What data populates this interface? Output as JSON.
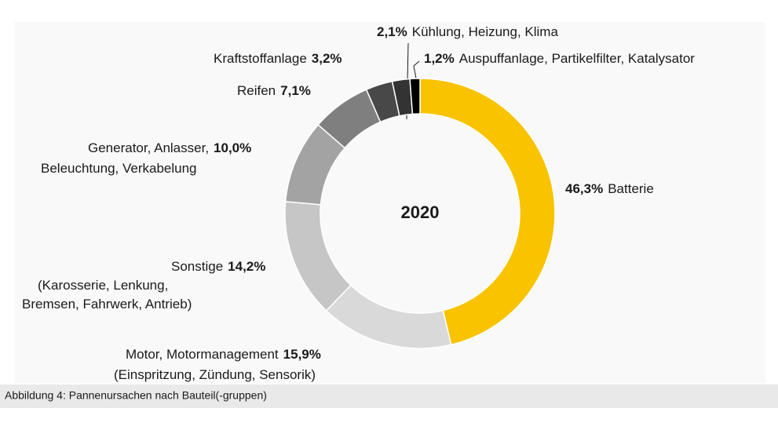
{
  "chart_data": {
    "type": "donut",
    "center_label": "2020",
    "categories": [
      [
        "Batterie"
      ],
      [
        "Motor, Motormanagement",
        "(Einspritzung, Zündung, Sensorik)"
      ],
      [
        "Sonstige",
        "(Karosserie, Lenkung,",
        "Bremsen, Fahrwerk, Antrieb)"
      ],
      [
        "Generator, Anlasser,",
        "Beleuchtung, Verkabelung"
      ],
      [
        "Reifen"
      ],
      [
        "Kraftstoffanlage"
      ],
      [
        "Kühlung, Heizung, Klima"
      ],
      [
        "Auspuffanlage, Partikelfilter, Katalysator"
      ]
    ],
    "values": [
      46.3,
      15.9,
      14.2,
      10.0,
      7.1,
      3.2,
      2.1,
      1.2
    ],
    "value_labels": [
      "46,3%",
      "15,9%",
      "14,2%",
      "10,0%",
      "7,1%",
      "3,2%",
      "2,1%",
      "1,2%"
    ],
    "colors": [
      "#f9c300",
      "#d9d9d9",
      "#c6c6c6",
      "#a3a3a3",
      "#7f7f7f",
      "#484848",
      "#333333",
      "#000000"
    ]
  },
  "caption": "Abbildung 4: Pannenursachen nach Bauteil(-gruppen)"
}
